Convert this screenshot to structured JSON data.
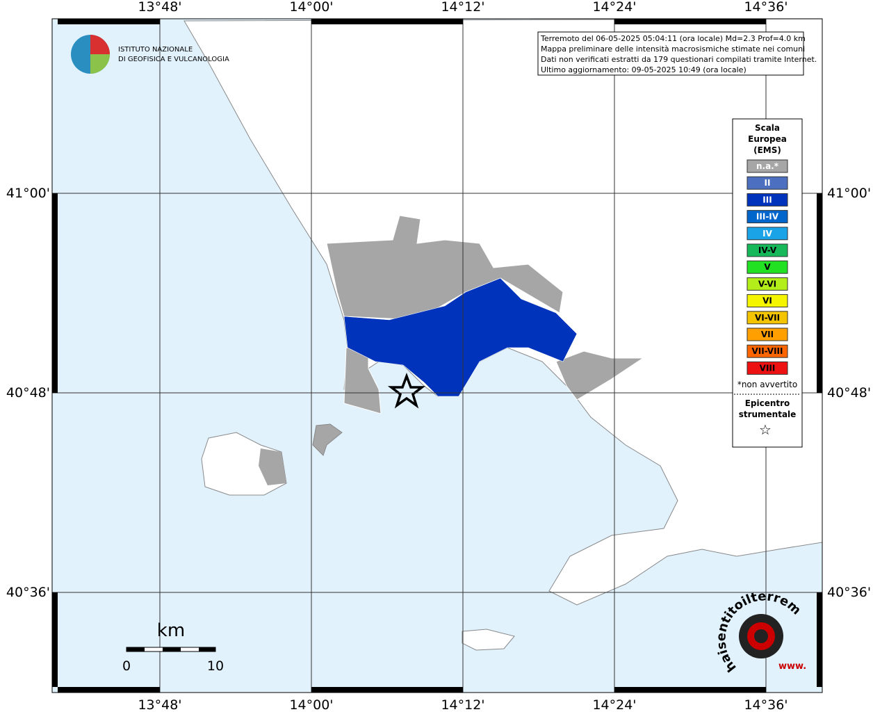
{
  "map": {
    "lon_labels": [
      "13°48'",
      "14°00'",
      "14°12'",
      "14°24'",
      "14°36'"
    ],
    "lat_labels": [
      "41°00'",
      "40°48'",
      "40°36'"
    ],
    "institute": [
      "ISTITUTO NAZIONALE",
      "DI GEOFISICA E VULCANOLOGIA"
    ],
    "info_lines": [
      "Terremoto del 06-05-2025 05:04:11 (ora locale) Md=2.3 Prof=4.0 km",
      "Mappa preliminare delle intensità macrosismiche stimate nei comuni",
      "Dati non verificati estratti da 179 questionari compilati tramite Internet.",
      "Ultimo aggiornamento: 09-05-2025 10:49 (ora locale)"
    ],
    "legend": {
      "title": [
        "Scala",
        "Europea",
        "(EMS)"
      ],
      "items": [
        {
          "label": "n.a.*",
          "color": "#a6a6a6"
        },
        {
          "label": "II",
          "color": "#4d6fbf"
        },
        {
          "label": "III",
          "color": "#0033bb"
        },
        {
          "label": "III-IV",
          "color": "#0066cc"
        },
        {
          "label": "IV",
          "color": "#1aa3e6"
        },
        {
          "label": "IV-V",
          "color": "#16b85a"
        },
        {
          "label": "V",
          "color": "#22e022"
        },
        {
          "label": "V-VI",
          "color": "#b3ee1a"
        },
        {
          "label": "VI",
          "color": "#f5f500"
        },
        {
          "label": "VI-VII",
          "color": "#f5c400"
        },
        {
          "label": "VII",
          "color": "#ff9f00"
        },
        {
          "label": "VII-VIII",
          "color": "#ff6600"
        },
        {
          "label": "VIII",
          "color": "#ee1111"
        }
      ],
      "note": "*non avvertito",
      "epicenter": [
        "Epicentro",
        "strumentale"
      ]
    },
    "scale": {
      "unit": "km",
      "start": "0",
      "end": "10"
    },
    "logo": {
      "site": "haisentitoilterremoto.it",
      "www": "www."
    }
  }
}
